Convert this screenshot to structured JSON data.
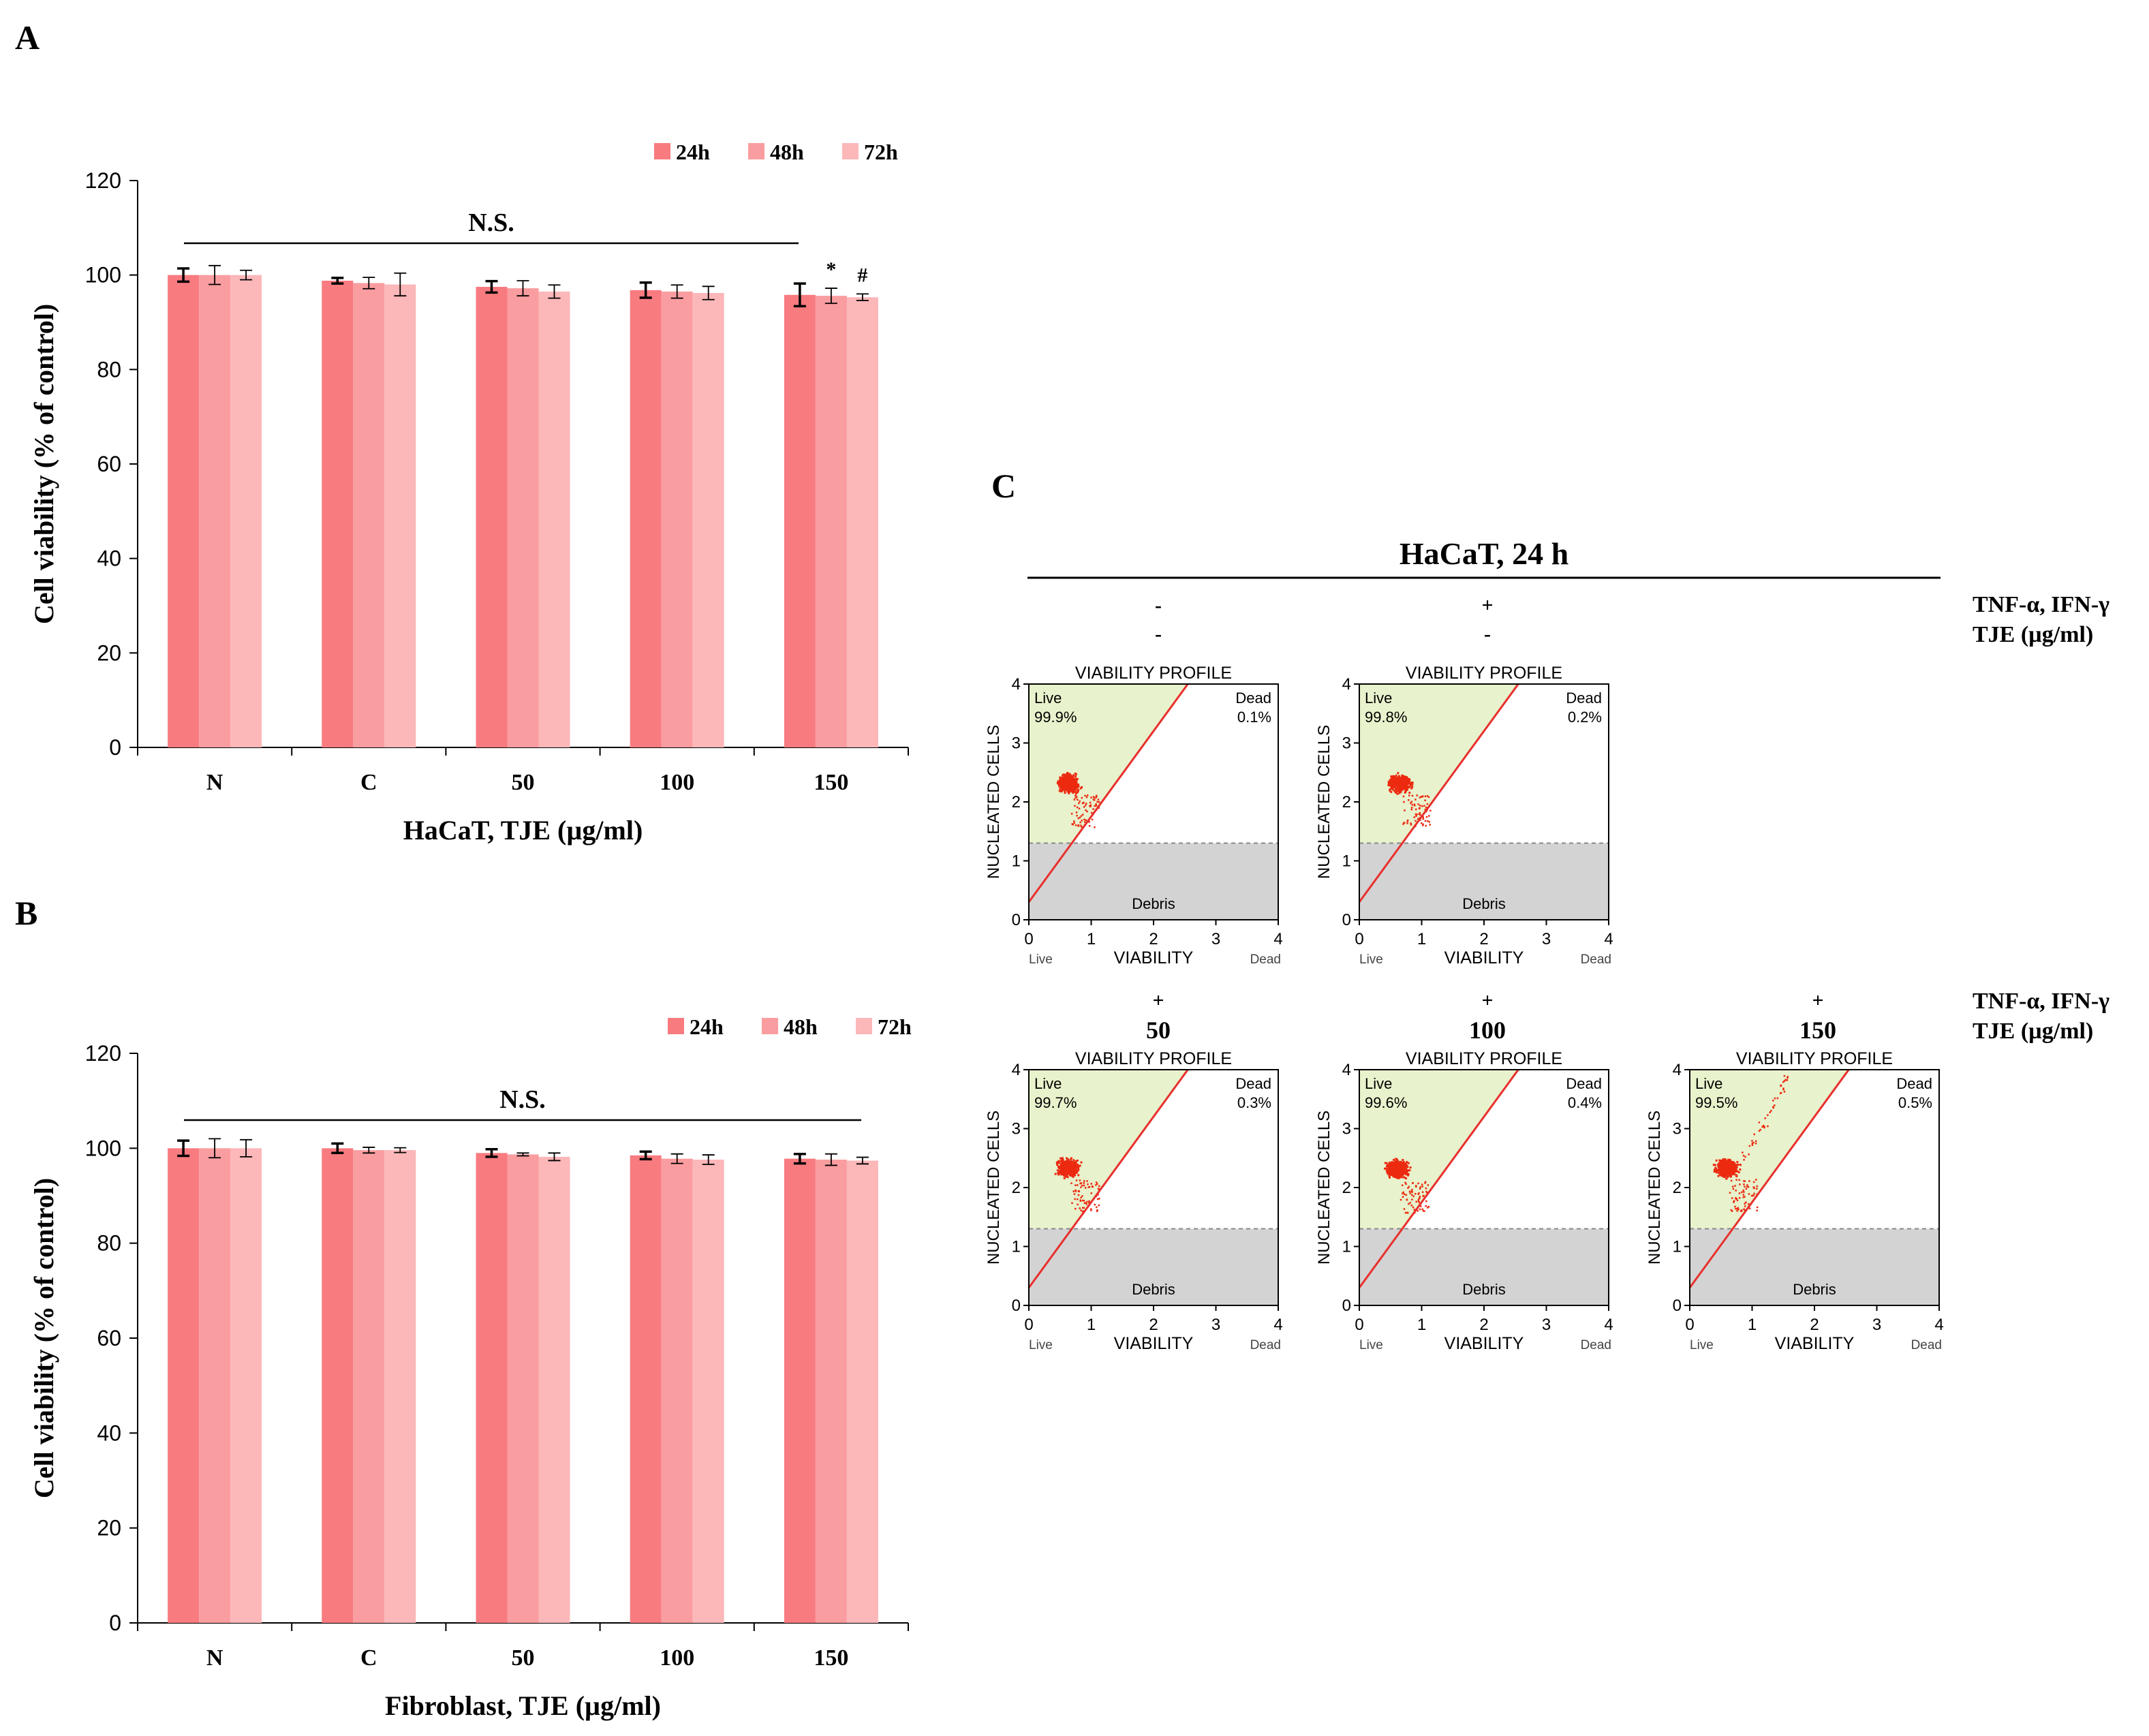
{
  "panel_labels": {
    "a": "A",
    "b": "B",
    "c": "C"
  },
  "colors": {
    "h24": "#f87b80",
    "h48": "#fa9da0",
    "h72": "#fcb7b9",
    "line": "#e8302d",
    "live_fill": "#e8f2cc",
    "debris_fill": "#d3d3d3",
    "dots": "#ec2a10"
  },
  "legend_labels": [
    "24h",
    "48h",
    "72h"
  ],
  "chart_data": [
    {
      "type": "bar",
      "panel": "A",
      "categories": [
        "N",
        "C",
        "50",
        "100",
        "150"
      ],
      "series": [
        {
          "name": "24h",
          "values": [
            100,
            98.8,
            97.5,
            96.8,
            95.8
          ],
          "errors": [
            1.4,
            0.6,
            1.2,
            1.6,
            2.4
          ]
        },
        {
          "name": "48h",
          "values": [
            100,
            98.3,
            97.2,
            96.5,
            95.6
          ],
          "errors": [
            2.0,
            1.2,
            1.6,
            1.4,
            1.6
          ]
        },
        {
          "name": "72h",
          "values": [
            100,
            98.0,
            96.5,
            96.2,
            95.3
          ],
          "errors": [
            1.0,
            2.4,
            1.4,
            1.4,
            0.7
          ]
        }
      ],
      "annotations": [
        {
          "text": "*",
          "category": "150",
          "series": "48h"
        },
        {
          "text": "#",
          "category": "150",
          "series": "72h"
        }
      ],
      "significance_label": "N.S.",
      "title": "",
      "xlabel": "HaCaT, TJE (µg/ml)",
      "ylabel": "Cell viability (% of control)",
      "ylim": [
        0,
        120
      ],
      "yticks": [
        "0",
        "20",
        "40",
        "60",
        "80",
        "100",
        "120"
      ],
      "legend": "top-right",
      "grid": false
    },
    {
      "type": "bar",
      "panel": "B",
      "categories": [
        "N",
        "C",
        "50",
        "100",
        "150"
      ],
      "series": [
        {
          "name": "24h",
          "values": [
            100,
            100,
            99,
            98.5,
            97.8
          ],
          "errors": [
            1.6,
            1.0,
            0.8,
            0.8,
            1.0
          ]
        },
        {
          "name": "48h",
          "values": [
            100,
            99.6,
            98.7,
            97.8,
            97.6
          ],
          "errors": [
            2.0,
            0.6,
            0.3,
            1.0,
            1.2
          ]
        },
        {
          "name": "72h",
          "values": [
            100,
            99.6,
            98.2,
            97.6,
            97.4
          ],
          "errors": [
            1.8,
            0.5,
            0.8,
            1.0,
            0.7
          ]
        }
      ],
      "significance_label": "N.S.",
      "title": "",
      "xlabel": "Fibroblast, TJE (µg/ml)",
      "ylabel": "Cell viability (% of control)",
      "ylim": [
        0,
        120
      ],
      "yticks": [
        "0",
        "20",
        "40",
        "60",
        "80",
        "100",
        "120"
      ],
      "legend": "top-right",
      "grid": false
    },
    {
      "type": "scatter",
      "panel": "C",
      "title": "HaCaT, 24 h",
      "row_labels": [
        "TNF-α, IFN-γ",
        "TJE (µg/ml)"
      ],
      "plot_title": "VIABILITY PROFILE",
      "xlabel": "VIABILITY",
      "ylabel": "NUCLEATED CELLS",
      "xlim": [
        0,
        4
      ],
      "ylim": [
        0,
        4
      ],
      "ticks": [
        "0",
        "1",
        "2",
        "3",
        "4"
      ],
      "corner_labels": {
        "x_min": "Live",
        "x_max": "Dead",
        "debris": "Debris"
      },
      "debris_threshold": 1.3,
      "gate_line": {
        "x0": 0,
        "y0": 0.3,
        "x1": 2.55,
        "y1": 4.0
      },
      "plots": [
        {
          "treatment": "-",
          "tje": "-",
          "live_label": "Live",
          "live_pct": "99.9%",
          "dead_label": "Dead",
          "dead_pct": "0.1%",
          "cluster": {
            "x": 0.62,
            "y": 2.33
          },
          "tail": 0
        },
        {
          "treatment": "+",
          "tje": "-",
          "live_label": "Live",
          "live_pct": "99.8%",
          "dead_label": "Dead",
          "dead_pct": "0.2%",
          "cluster": {
            "x": 0.64,
            "y": 2.33
          },
          "tail": 0
        },
        {
          "treatment": "+",
          "tje": "50",
          "live_label": "Live",
          "live_pct": "99.7%",
          "dead_label": "Dead",
          "dead_pct": "0.3%",
          "cluster": {
            "x": 0.62,
            "y": 2.35
          },
          "tail": 0
        },
        {
          "treatment": "+",
          "tje": "100",
          "live_label": "Live",
          "live_pct": "99.6%",
          "dead_label": "Dead",
          "dead_pct": "0.4%",
          "cluster": {
            "x": 0.6,
            "y": 2.33
          },
          "tail": 0
        },
        {
          "treatment": "+",
          "tje": "150",
          "live_label": "Live",
          "live_pct": "99.5%",
          "dead_label": "Dead",
          "dead_pct": "0.5%",
          "cluster": {
            "x": 0.58,
            "y": 2.35
          },
          "tail": 1
        }
      ]
    }
  ]
}
